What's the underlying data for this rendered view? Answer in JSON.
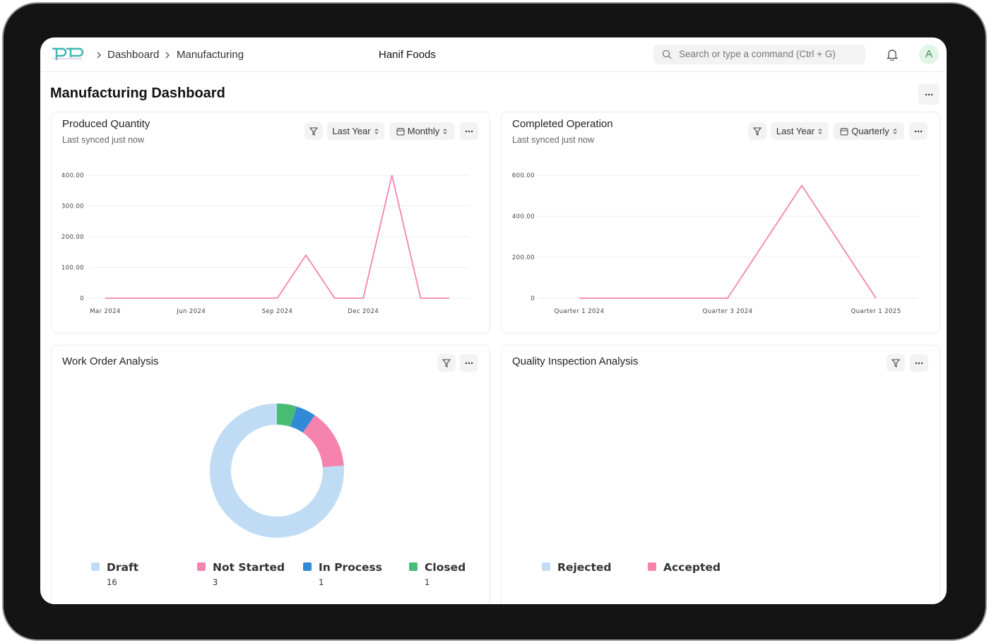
{
  "header": {
    "breadcrumbs": [
      "Dashboard",
      "Manufacturing"
    ],
    "company": "Hanif Foods",
    "search_placeholder": "Search or type a command (Ctrl + G)",
    "avatar": "A"
  },
  "page_title": "Manufacturing Dashboard",
  "chart_data": [
    {
      "type": "line",
      "title": "Produced Quantity",
      "subtitle": "Last synced just now",
      "filters": [
        "Last Year",
        "Monthly"
      ],
      "categories": [
        "Mar 2024",
        null,
        null,
        "Jun 2024",
        null,
        null,
        "Sep 2024",
        null,
        null,
        "Dec 2024",
        null,
        null,
        null
      ],
      "values": [
        0,
        0,
        0,
        0,
        0,
        0,
        0,
        140,
        0,
        0,
        400,
        0,
        0
      ],
      "color": "#f683ae",
      "ylim": [
        0,
        400
      ],
      "yticks": [
        0,
        {
          "value": 100,
          "label": "100.00"
        },
        {
          "value": 200,
          "label": "200.00"
        },
        {
          "value": 300,
          "label": "300.00"
        },
        {
          "value": 400,
          "label": "400.00"
        }
      ],
      "grid": true
    },
    {
      "type": "line",
      "title": "Completed Operation",
      "subtitle": "Last synced just now",
      "filters": [
        "Last Year",
        "Quarterly"
      ],
      "categories": [
        "Quarter 1 2024",
        null,
        "Quarter 3 2024",
        null,
        "Quarter 1 2025"
      ],
      "values": [
        0,
        0,
        0,
        550,
        0
      ],
      "color": "#f683ae",
      "ylim": [
        0,
        600
      ],
      "yticks": [
        0,
        {
          "value": 200,
          "label": "200.00"
        },
        {
          "value": 400,
          "label": "400.00"
        },
        {
          "value": 600,
          "label": "600.00"
        }
      ],
      "grid": true
    },
    {
      "type": "donut",
      "title": "Work Order Analysis",
      "categories": [
        "Draft",
        "Not Started",
        "In Process",
        "Closed"
      ],
      "values": [
        16,
        3,
        1,
        1
      ],
      "colors": [
        "#c0dcf5",
        "#f683ae",
        "#318ad8",
        "#48bb74"
      ]
    },
    {
      "type": "donut",
      "title": "Quality Inspection Analysis",
      "categories": [
        "Rejected",
        "Accepted"
      ],
      "colors": [
        "#c0dcf5",
        "#f683ae"
      ]
    }
  ]
}
